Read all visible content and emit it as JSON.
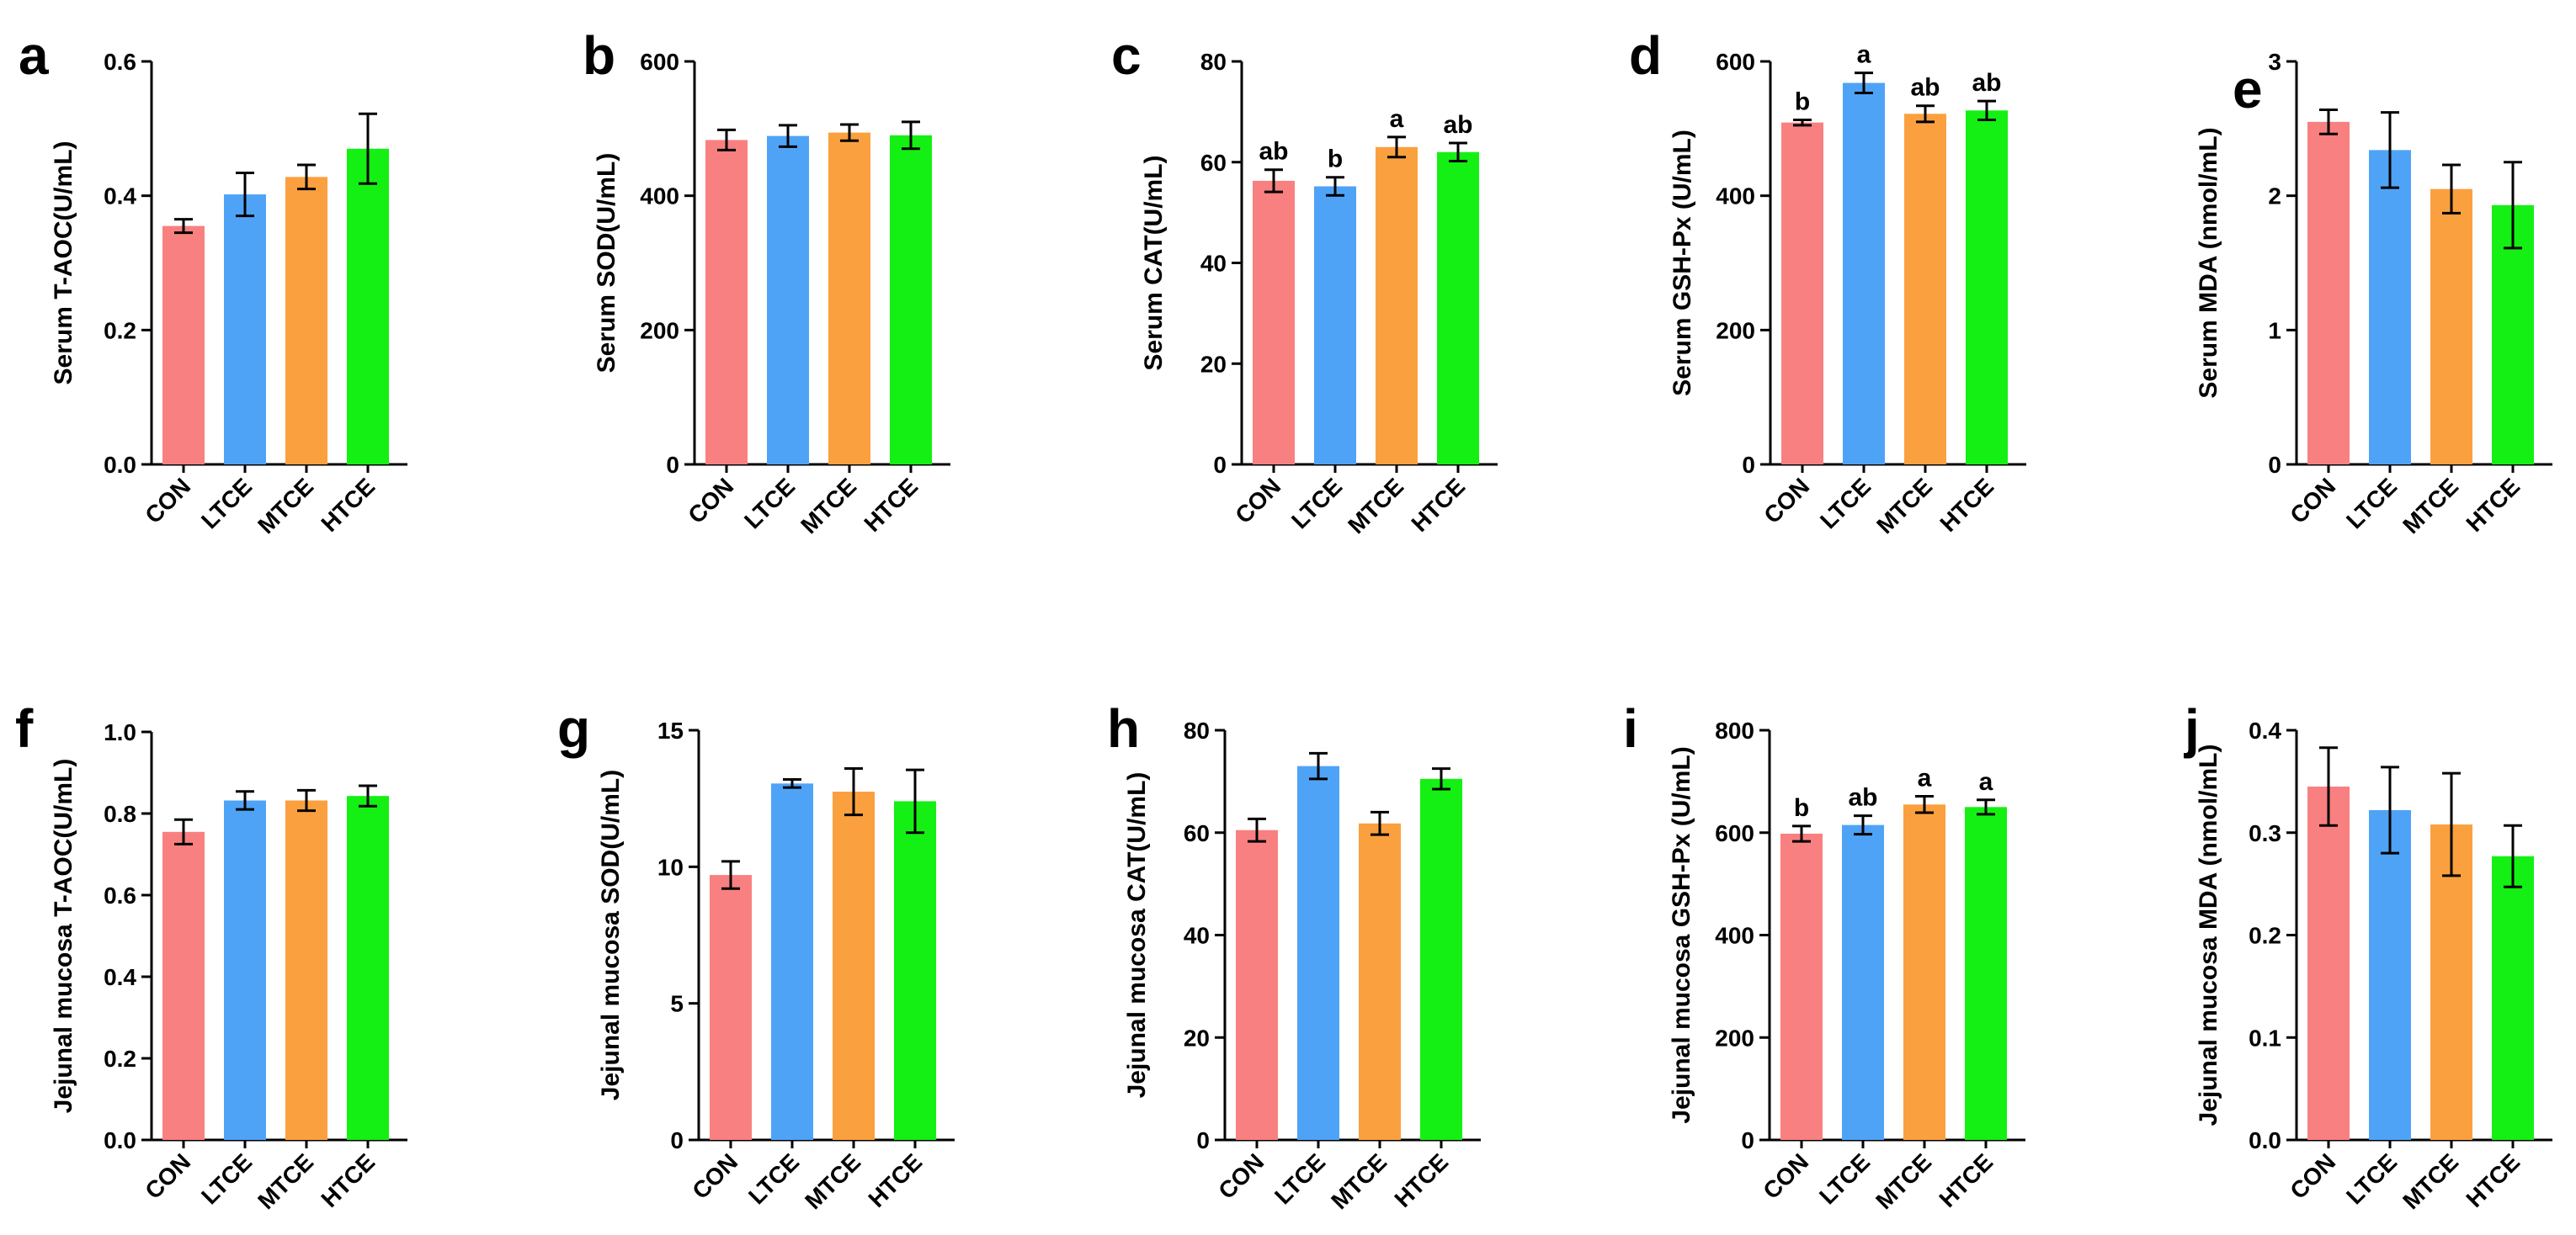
{
  "chart_data": [
    {
      "type": "bar",
      "letter": "a",
      "title": "",
      "ylabel": "Serum T-AOC(U/mL)",
      "xlabel": "",
      "categories": [
        "CON",
        "LTCE",
        "MTCE",
        "HTCE"
      ],
      "colors": [
        "#F98080",
        "#4FA3F7",
        "#FBA03F",
        "#14F014"
      ],
      "ylim": [
        0,
        0.6
      ],
      "yticks": [
        "0.0",
        "0.2",
        "0.4",
        "0.6"
      ],
      "values": [
        0.355,
        0.402,
        0.428,
        0.47
      ],
      "errors": [
        0.01,
        0.032,
        0.018,
        0.052
      ],
      "significance": [
        "",
        "",
        "",
        ""
      ]
    },
    {
      "type": "bar",
      "letter": "b",
      "title": "",
      "ylabel": "Serum SOD(U/mL)",
      "xlabel": "",
      "categories": [
        "CON",
        "LTCE",
        "MTCE",
        "HTCE"
      ],
      "colors": [
        "#F98080",
        "#4FA3F7",
        "#FBA03F",
        "#14F014"
      ],
      "ylim": [
        0,
        600
      ],
      "yticks": [
        "0",
        "200",
        "400",
        "600"
      ],
      "values": [
        483,
        489,
        494,
        490
      ],
      "errors": [
        15,
        16,
        12,
        20
      ],
      "significance": [
        "",
        "",
        "",
        ""
      ]
    },
    {
      "type": "bar",
      "letter": "c",
      "title": "",
      "ylabel": "Serum CAT(U/mL)",
      "xlabel": "",
      "categories": [
        "CON",
        "LTCE",
        "MTCE",
        "HTCE"
      ],
      "colors": [
        "#F98080",
        "#4FA3F7",
        "#FBA03F",
        "#14F014"
      ],
      "ylim": [
        0,
        80
      ],
      "yticks": [
        "0",
        "20",
        "40",
        "60",
        "80"
      ],
      "values": [
        56.3,
        55.2,
        63,
        62
      ],
      "errors": [
        2.2,
        1.8,
        2.0,
        1.8
      ],
      "significance": [
        "ab",
        "b",
        "a",
        "ab"
      ]
    },
    {
      "type": "bar",
      "letter": "d",
      "title": "",
      "ylabel": "Serum GSH-Px (U/mL)",
      "xlabel": "",
      "categories": [
        "CON",
        "LTCE",
        "MTCE",
        "HTCE"
      ],
      "colors": [
        "#F98080",
        "#4FA3F7",
        "#FBA03F",
        "#14F014"
      ],
      "ylim": [
        0,
        600
      ],
      "yticks": [
        "0",
        "200",
        "400",
        "600"
      ],
      "values": [
        509,
        568,
        522,
        527
      ],
      "errors": [
        4,
        15,
        12,
        14
      ],
      "significance": [
        "b",
        "a",
        "ab",
        "ab"
      ]
    },
    {
      "type": "bar",
      "letter": "e",
      "title": "",
      "ylabel": "Serum MDA (nmol/mL)",
      "xlabel": "",
      "categories": [
        "CON",
        "LTCE",
        "MTCE",
        "HTCE"
      ],
      "colors": [
        "#F98080",
        "#4FA3F7",
        "#FBA03F",
        "#14F014"
      ],
      "ylim": [
        0,
        3
      ],
      "yticks": [
        "0",
        "1",
        "2",
        "3"
      ],
      "values": [
        2.55,
        2.34,
        2.05,
        1.93
      ],
      "errors": [
        0.09,
        0.28,
        0.18,
        0.32
      ],
      "significance": [
        "",
        "",
        "",
        ""
      ]
    },
    {
      "type": "bar",
      "letter": "f",
      "title": "",
      "ylabel": "Jejunal mucosa T-AOC(U/mL)",
      "xlabel": "",
      "categories": [
        "CON",
        "LTCE",
        "MTCE",
        "HTCE"
      ],
      "colors": [
        "#F98080",
        "#4FA3F7",
        "#FBA03F",
        "#14F014"
      ],
      "ylim": [
        0,
        1.0
      ],
      "yticks": [
        "0.0",
        "0.2",
        "0.4",
        "0.6",
        "0.8",
        "1.0"
      ],
      "values": [
        0.755,
        0.832,
        0.832,
        0.843
      ],
      "errors": [
        0.03,
        0.022,
        0.025,
        0.025
      ],
      "significance": [
        "",
        "",
        "",
        ""
      ]
    },
    {
      "type": "bar",
      "letter": "g",
      "title": "",
      "ylabel": "Jejunal mucosa SOD(U/mL)",
      "xlabel": "",
      "categories": [
        "CON",
        "LTCE",
        "MTCE",
        "HTCE"
      ],
      "colors": [
        "#F98080",
        "#4FA3F7",
        "#FBA03F",
        "#14F014"
      ],
      "ylim": [
        0,
        15
      ],
      "yticks": [
        "0",
        "5",
        "10",
        "15"
      ],
      "values": [
        9.7,
        13.05,
        12.75,
        12.4
      ],
      "errors": [
        0.5,
        0.15,
        0.85,
        1.15
      ],
      "significance": [
        "",
        "",
        "",
        ""
      ]
    },
    {
      "type": "bar",
      "letter": "h",
      "title": "",
      "ylabel": "Jejunal mucosa CAT(U/mL)",
      "xlabel": "",
      "categories": [
        "CON",
        "LTCE",
        "MTCE",
        "HTCE"
      ],
      "colors": [
        "#F98080",
        "#4FA3F7",
        "#FBA03F",
        "#14F014"
      ],
      "ylim": [
        0,
        80
      ],
      "yticks": [
        "0",
        "20",
        "40",
        "60",
        "80"
      ],
      "values": [
        60.5,
        73,
        61.8,
        70.5
      ],
      "errors": [
        2.2,
        2.5,
        2.2,
        2.0
      ],
      "significance": [
        "",
        "",
        "",
        ""
      ]
    },
    {
      "type": "bar",
      "letter": "i",
      "title": "",
      "ylabel": "Jejunal mucosa GSH-Px (U/mL)",
      "xlabel": "",
      "categories": [
        "CON",
        "LTCE",
        "MTCE",
        "HTCE"
      ],
      "colors": [
        "#F98080",
        "#4FA3F7",
        "#FBA03F",
        "#14F014"
      ],
      "ylim": [
        0,
        800
      ],
      "yticks": [
        "0",
        "200",
        "400",
        "600",
        "800"
      ],
      "values": [
        598,
        615,
        655,
        650
      ],
      "errors": [
        15,
        18,
        16,
        14
      ],
      "significance": [
        "b",
        "ab",
        "a",
        "a"
      ]
    },
    {
      "type": "bar",
      "letter": "j",
      "title": "",
      "ylabel": "Jejunal mucosa MDA (nmol/mL)",
      "xlabel": "",
      "categories": [
        "CON",
        "LTCE",
        "MTCE",
        "HTCE"
      ],
      "colors": [
        "#F98080",
        "#4FA3F7",
        "#FBA03F",
        "#14F014"
      ],
      "ylim": [
        0,
        0.4
      ],
      "yticks": [
        "0.0",
        "0.1",
        "0.2",
        "0.3",
        "0.4"
      ],
      "values": [
        0.345,
        0.322,
        0.308,
        0.277
      ],
      "errors": [
        0.038,
        0.042,
        0.05,
        0.03
      ],
      "significance": [
        "",
        "",
        "",
        ""
      ]
    }
  ]
}
